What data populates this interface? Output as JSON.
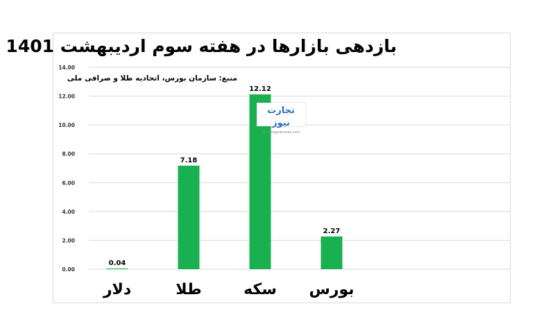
{
  "title": "بازدهی بازارها در هفته سوم اردیبهشت 1401",
  "source": "منبع: سازمان بورس، اتحادیه طلا و صرافی ملی",
  "watermark": {
    "name": "تجارت نیوز",
    "site": "www.tejaratnews.com"
  },
  "colors": {
    "bar": "#19b04f",
    "grid": "#d9d9d9"
  },
  "chart_data": {
    "type": "bar",
    "categories": [
      "دلار",
      "طلا",
      "سکه",
      "بورس"
    ],
    "values": [
      0.04,
      7.18,
      12.12,
      2.27
    ],
    "value_labels": [
      "0.04",
      "7.18",
      "12.12",
      "2.27"
    ],
    "title": "بازدهی بازارها در هفته سوم اردیبهشت 1401",
    "xlabel": "",
    "ylabel": "",
    "ylim": [
      0,
      14
    ],
    "yticks": [
      "0.00",
      "2.00",
      "4.00",
      "6.00",
      "8.00",
      "10.00",
      "12.00",
      "14.00"
    ],
    "grid": true,
    "legend": "none"
  }
}
